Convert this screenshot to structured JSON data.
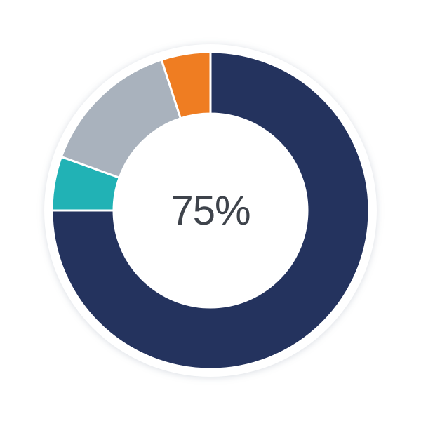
{
  "chart_data": {
    "type": "pie",
    "subtype": "donut",
    "title": "",
    "center_label": "75%",
    "center_label_color": "#3e434b",
    "direction": "clockwise",
    "start_angle_deg": 0,
    "inner_radius_ratio": 0.61,
    "segment_gap_color": "#ffffff",
    "halo_color": "#ffffff",
    "background_color": "#ffffff",
    "segments": [
      {
        "name": "primary-navy",
        "value": 75,
        "color": "#24335e"
      },
      {
        "name": "teal",
        "value": 5.5,
        "color": "#21b2b5"
      },
      {
        "name": "gray",
        "value": 14.5,
        "color": "#a9b2bd"
      },
      {
        "name": "orange",
        "value": 5,
        "color": "#ef7d22"
      }
    ],
    "legend": "none",
    "axes": "none"
  }
}
